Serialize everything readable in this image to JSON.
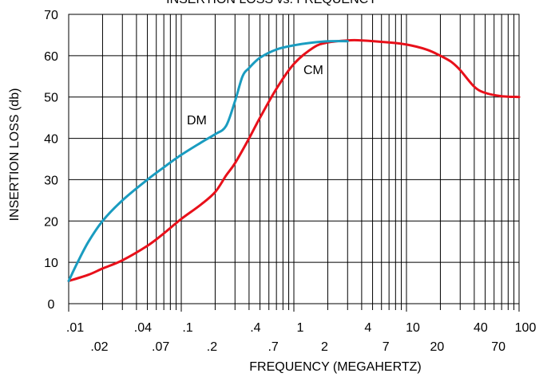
{
  "chart_data": {
    "type": "line",
    "title": "INSERTION LOSS vs. FREQUENCY",
    "xlabel": "FREQUENCY (MEGAHERTZ)",
    "ylabel": "INSERTION LOSS (db)",
    "x_scale": "log",
    "xlim": [
      0.01,
      100
    ],
    "ylim": [
      0,
      70
    ],
    "grid": true,
    "y_ticks": [
      "0",
      "10",
      "20",
      "30",
      "40",
      "50",
      "60",
      "70"
    ],
    "x_ticks_upper": [
      ".01",
      ".04",
      ".1",
      ".4",
      "1",
      "4",
      "10",
      "40",
      "100"
    ],
    "x_ticks_lower": [
      ".02",
      ".07",
      ".2",
      ".7",
      "2",
      "7",
      "20",
      "70"
    ],
    "series": [
      {
        "name": "DM",
        "color": "#1a9cc0",
        "x": [
          0.01,
          0.012,
          0.015,
          0.02,
          0.03,
          0.05,
          0.07,
          0.1,
          0.15,
          0.2,
          0.25,
          0.3,
          0.35,
          0.4,
          0.5,
          0.7,
          1,
          1.5,
          2,
          3
        ],
        "y": [
          5.5,
          10,
          15,
          20,
          25,
          30,
          33,
          36,
          39,
          41,
          43,
          49,
          55,
          57,
          59.5,
          61.5,
          62.5,
          63.2,
          63.5,
          63.5
        ]
      },
      {
        "name": "CM",
        "color": "#e8101a",
        "x": [
          0.01,
          0.015,
          0.02,
          0.03,
          0.05,
          0.07,
          0.1,
          0.15,
          0.2,
          0.25,
          0.3,
          0.4,
          0.5,
          0.7,
          1,
          1.5,
          2,
          3,
          4,
          7,
          10,
          15,
          20,
          25,
          30,
          40,
          50,
          70,
          100
        ],
        "y": [
          5.5,
          7,
          8.5,
          10.5,
          14,
          17,
          20.5,
          24,
          27,
          31,
          34,
          40,
          45,
          52,
          58,
          62,
          63.2,
          63.7,
          63.7,
          63.2,
          62.7,
          61.5,
          60,
          58.5,
          56.5,
          52.5,
          51,
          50.2,
          50
        ]
      }
    ]
  }
}
